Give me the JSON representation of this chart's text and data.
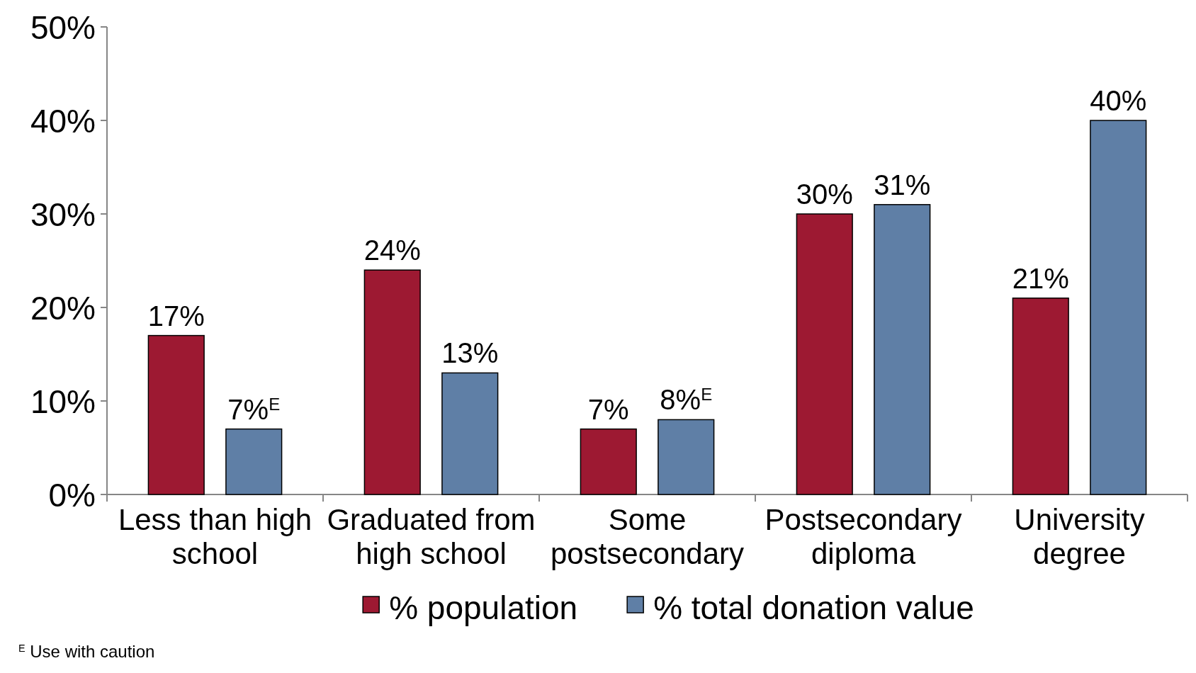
{
  "chart_data": {
    "type": "bar",
    "categories": [
      "Less than high school",
      "Graduated from high school",
      "Some postsecondary",
      "Postsecondary diploma",
      "University degree"
    ],
    "series": [
      {
        "name": "% population",
        "color": "#9d1932",
        "values": [
          17,
          24,
          7,
          30,
          21
        ],
        "value_labels": [
          "17%",
          "24%",
          "7%",
          "30%",
          "21%"
        ]
      },
      {
        "name": "% total donation value",
        "color": "#5f7fa6",
        "values": [
          7,
          13,
          8,
          31,
          40
        ],
        "value_labels": [
          "7%$^{E}$",
          "13%",
          "8%$^{E}$",
          "31%",
          "40%"
        ]
      }
    ],
    "ylim": [
      0,
      50
    ],
    "yticks": [
      {
        "value": 0,
        "label": "0%"
      },
      {
        "value": 10,
        "label": "10%"
      },
      {
        "value": 20,
        "label": "20%"
      },
      {
        "value": 30,
        "label": "30%"
      },
      {
        "value": 40,
        "label": "40%"
      },
      {
        "value": 50,
        "label": "50%"
      }
    ],
    "legend": "bottom",
    "annotations": [
      "$^{E}$ Use with caution"
    ]
  }
}
